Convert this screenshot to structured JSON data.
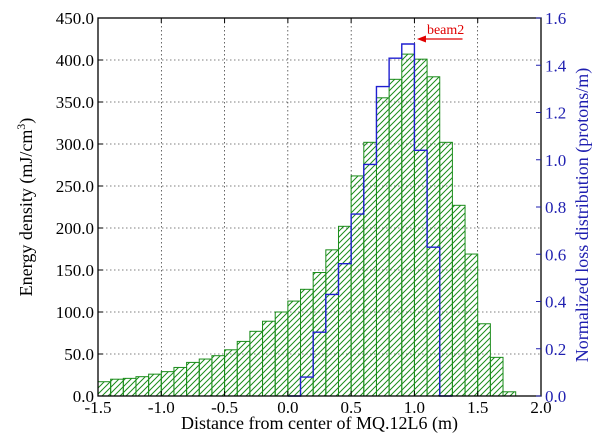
{
  "chart_data": {
    "type": "bar",
    "xlabel": "Distance from center of MQ.12L6 (m)",
    "ylabel_left": "Energy density (mJ/cm",
    "ylabel_left_sup": "3",
    "ylabel_left_end": ")",
    "ylabel_right": "Normalized loss distribution (protons/m)",
    "xlim": [
      -1.5,
      2.0
    ],
    "ylim_left": [
      0,
      450
    ],
    "ylim_right": [
      0,
      1.6
    ],
    "grid": true,
    "x_ticks": [
      "-1.5",
      "-1.0",
      "-0.5",
      "0.0",
      "0.5",
      "1.0",
      "1.5",
      "2.0"
    ],
    "y_left_ticks": [
      "0.0",
      "50.0",
      "100.0",
      "150.0",
      "200.0",
      "250.0",
      "300.0",
      "350.0",
      "400.0",
      "450.0"
    ],
    "y_right_ticks": [
      "0.0",
      "0.2",
      "0.4",
      "0.6",
      "0.8",
      "1.0",
      "1.2",
      "1.4",
      "1.6"
    ],
    "colors": {
      "energy": "#1a8c1a",
      "loss": "#1f1fd0",
      "annotation": "#e00000",
      "right_axis": "#1f1fb0"
    },
    "energy_density": {
      "bin_width": 0.1,
      "bin_edges_start": -1.5,
      "values": [
        17,
        20,
        21,
        23,
        26,
        29,
        34,
        40,
        44,
        48,
        55,
        65,
        77,
        89,
        100,
        113,
        127,
        147,
        174,
        202,
        262,
        302,
        355,
        377,
        407,
        401,
        380,
        302,
        227,
        169,
        86,
        46,
        5
      ]
    },
    "loss_distribution": {
      "x": [
        0.05,
        0.15,
        0.25,
        0.35,
        0.45,
        0.55,
        0.65,
        0.75,
        0.85,
        0.95,
        1.05,
        1.15,
        1.25
      ],
      "values": [
        0.0,
        0.08,
        0.27,
        0.43,
        0.56,
        0.77,
        0.98,
        1.31,
        1.43,
        1.49,
        1.04,
        0.63,
        0.0
      ]
    },
    "annotation": {
      "text": "beam2"
    }
  }
}
